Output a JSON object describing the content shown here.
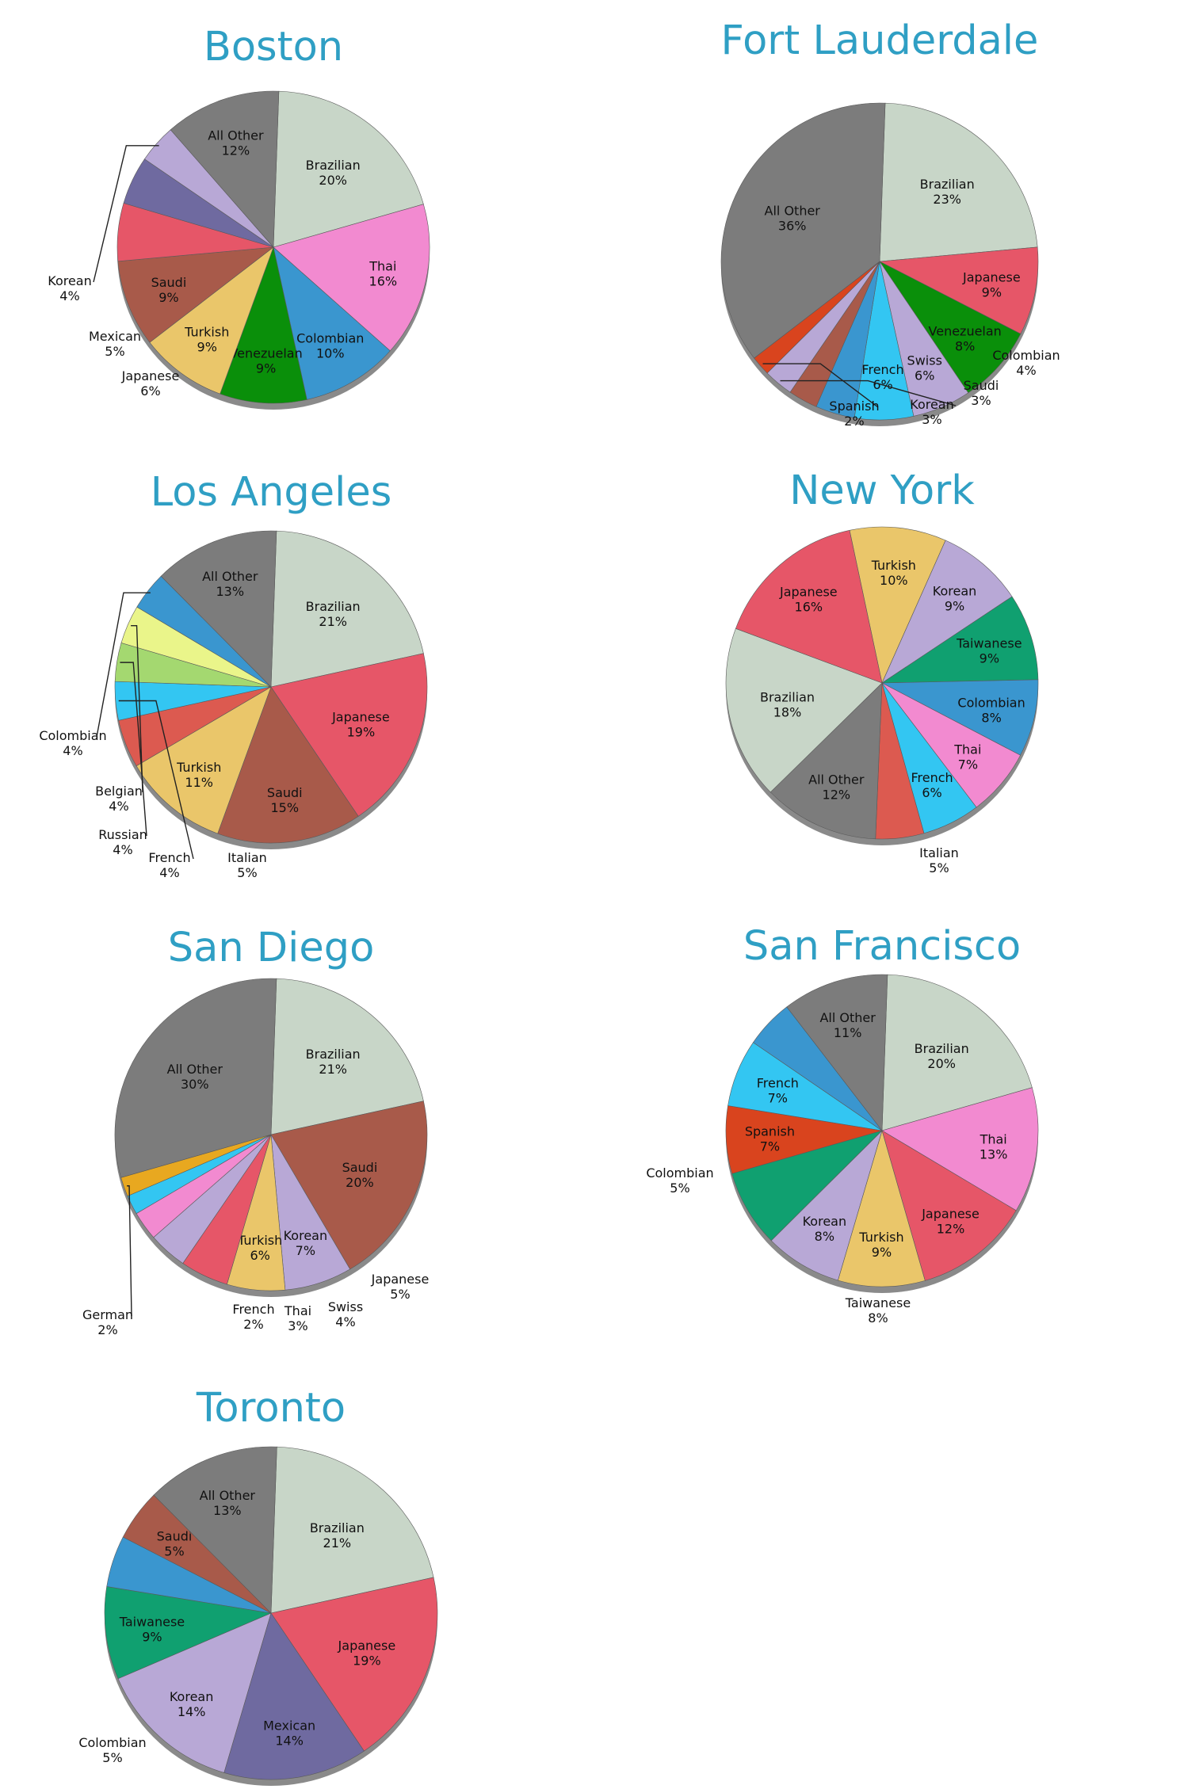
{
  "chart_data": [
    {
      "type": "pie",
      "title": "Boston",
      "categories": [
        "Brazilian",
        "Thai",
        "Colombian",
        "Venezuelan",
        "Turkish",
        "Saudi",
        "Japanese",
        "Mexican",
        "Korean",
        "All Other"
      ],
      "values": [
        20,
        16,
        10,
        9,
        9,
        9,
        6,
        5,
        4,
        12
      ],
      "percent_labels": [
        "20%",
        "16%",
        "10%",
        "9%",
        "9%",
        "9%",
        "6%",
        "5%",
        "4%",
        "12%"
      ],
      "colors": [
        "#c8d6c8",
        "#f28ad0",
        "#3a96cf",
        "#0a8f0a",
        "#eac66a",
        "#a85a4a",
        "#e65668",
        "#6f6aa0",
        "#b8a8d6",
        "#7c7c7c"
      ]
    },
    {
      "type": "pie",
      "title": "Fort Lauderdale",
      "categories": [
        "Brazilian",
        "Japanese",
        "Venezuelan",
        "Swiss",
        "French",
        "Colombian",
        "Saudi",
        "Korean",
        "Spanish",
        "All Other"
      ],
      "values": [
        23,
        9,
        8,
        6,
        6,
        4,
        3,
        3,
        2,
        36
      ],
      "percent_labels": [
        "23%",
        "9%",
        "8%",
        "6%",
        "6%",
        "4%",
        "3%",
        "3%",
        "2%",
        "36%"
      ],
      "colors": [
        "#c8d6c8",
        "#e65668",
        "#0a8f0a",
        "#b8a8d6",
        "#33c6f2",
        "#3a96cf",
        "#a85a4a",
        "#b8a8d6",
        "#d9441e",
        "#7c7c7c"
      ]
    },
    {
      "type": "pie",
      "title": "Los Angeles",
      "categories": [
        "Brazilian",
        "Japanese",
        "Saudi",
        "Turkish",
        "Italian",
        "French",
        "Russian",
        "Belgian",
        "Colombian",
        "All Other"
      ],
      "values": [
        21,
        19,
        15,
        11,
        5,
        4,
        4,
        4,
        4,
        13
      ],
      "percent_labels": [
        "21%",
        "19%",
        "15%",
        "11%",
        "5%",
        "4%",
        "4%",
        "4%",
        "4%",
        "13%"
      ],
      "colors": [
        "#c8d6c8",
        "#e65668",
        "#a85a4a",
        "#eac66a",
        "#dc5a50",
        "#33c6f2",
        "#a4d870",
        "#eaf58a",
        "#3a96cf",
        "#7c7c7c"
      ]
    },
    {
      "type": "pie",
      "title": "New York",
      "categories": [
        "Turkish",
        "Korean",
        "Taiwanese",
        "Colombian",
        "Thai",
        "French",
        "Italian",
        "All Other",
        "Brazilian",
        "Japanese"
      ],
      "values": [
        10,
        9,
        9,
        8,
        7,
        6,
        5,
        12,
        18,
        16
      ],
      "percent_labels": [
        "10%",
        "9%",
        "9%",
        "8%",
        "7%",
        "6%",
        "5%",
        "12%",
        "18%",
        "16%"
      ],
      "colors": [
        "#eac66a",
        "#b8a8d6",
        "#10a070",
        "#3a96cf",
        "#f28ad0",
        "#33c6f2",
        "#dc5a50",
        "#7c7c7c",
        "#c8d6c8",
        "#e65668"
      ]
    },
    {
      "type": "pie",
      "title": "San Diego",
      "categories": [
        "Brazilian",
        "Saudi",
        "Korean",
        "Turkish",
        "Japanese",
        "Swiss",
        "Thai",
        "French",
        "German",
        "All Other"
      ],
      "values": [
        21,
        20,
        7,
        6,
        5,
        4,
        3,
        2,
        2,
        30
      ],
      "percent_labels": [
        "21%",
        "20%",
        "7%",
        "6%",
        "5%",
        "4%",
        "3%",
        "2%",
        "2%",
        "30%"
      ],
      "colors": [
        "#c8d6c8",
        "#a85a4a",
        "#b8a8d6",
        "#eac66a",
        "#e65668",
        "#b8a8d6",
        "#f28ad0",
        "#33c6f2",
        "#e8a820",
        "#7c7c7c"
      ]
    },
    {
      "type": "pie",
      "title": "San Francisco",
      "categories": [
        "Brazilian",
        "Thai",
        "Japanese",
        "Turkish",
        "Korean",
        "Taiwanese",
        "Spanish",
        "French",
        "Colombian",
        "All Other"
      ],
      "values": [
        20,
        13,
        12,
        9,
        8,
        8,
        7,
        7,
        5,
        11
      ],
      "percent_labels": [
        "20%",
        "13%",
        "12%",
        "9%",
        "8%",
        "8%",
        "7%",
        "7%",
        "5%",
        "11%"
      ],
      "colors": [
        "#c8d6c8",
        "#f28ad0",
        "#e65668",
        "#eac66a",
        "#b8a8d6",
        "#10a070",
        "#d9441e",
        "#33c6f2",
        "#3a96cf",
        "#7c7c7c"
      ]
    },
    {
      "type": "pie",
      "title": "Toronto",
      "categories": [
        "Brazilian",
        "Japanese",
        "Mexican",
        "Korean",
        "Taiwanese",
        "Colombian",
        "Saudi",
        "All Other"
      ],
      "values": [
        21,
        19,
        14,
        14,
        9,
        5,
        5,
        13
      ],
      "percent_labels": [
        "21%",
        "19%",
        "14%",
        "14%",
        "9%",
        "5%",
        "5%",
        "13%"
      ],
      "colors": [
        "#c8d6c8",
        "#e65668",
        "#6f6aa0",
        "#b8a8d6",
        "#10a070",
        "#3a96cf",
        "#a85a4a",
        "#7c7c7c"
      ]
    }
  ]
}
